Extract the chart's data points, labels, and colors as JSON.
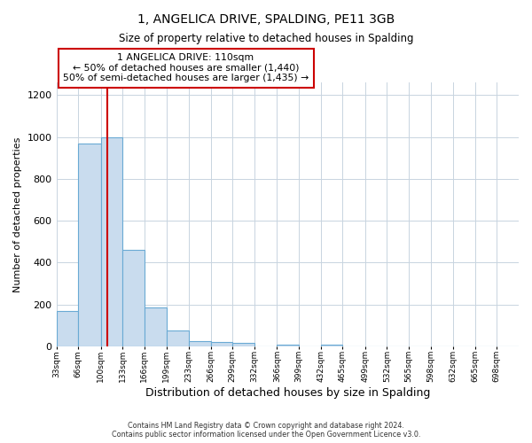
{
  "title": "1, ANGELICA DRIVE, SPALDING, PE11 3GB",
  "subtitle": "Size of property relative to detached houses in Spalding",
  "xlabel": "Distribution of detached houses by size in Spalding",
  "ylabel": "Number of detached properties",
  "bin_labels": [
    "33sqm",
    "66sqm",
    "100sqm",
    "133sqm",
    "166sqm",
    "199sqm",
    "233sqm",
    "266sqm",
    "299sqm",
    "332sqm",
    "366sqm",
    "399sqm",
    "432sqm",
    "465sqm",
    "499sqm",
    "532sqm",
    "565sqm",
    "598sqm",
    "632sqm",
    "665sqm",
    "698sqm"
  ],
  "bin_edges": [
    33,
    66,
    100,
    133,
    166,
    199,
    233,
    266,
    299,
    332,
    366,
    399,
    432,
    465,
    499,
    532,
    565,
    598,
    632,
    665,
    698,
    731
  ],
  "bar_values": [
    170,
    970,
    1000,
    460,
    185,
    75,
    25,
    20,
    15,
    0,
    10,
    0,
    10,
    0,
    0,
    0,
    0,
    0,
    0,
    0,
    0
  ],
  "bar_color": "#c9dcee",
  "bar_edge_color": "#6aaad4",
  "grid_color": "#c8d4e0",
  "background_color": "#ffffff",
  "plot_bg_color": "#ffffff",
  "vline_x": 110,
  "vline_color": "#cc0000",
  "annotation_title": "1 ANGELICA DRIVE: 110sqm",
  "annotation_line1": "← 50% of detached houses are smaller (1,440)",
  "annotation_line2": "50% of semi-detached houses are larger (1,435) →",
  "annotation_box_color": "#ffffff",
  "annotation_box_edge": "#cc0000",
  "ylim": [
    0,
    1260
  ],
  "yticks": [
    0,
    200,
    400,
    600,
    800,
    1000,
    1200
  ],
  "footnote1": "Contains HM Land Registry data © Crown copyright and database right 2024.",
  "footnote2": "Contains public sector information licensed under the Open Government Licence v3.0."
}
